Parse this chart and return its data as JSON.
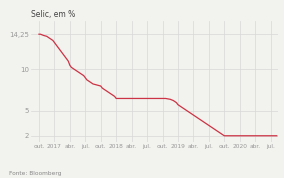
{
  "title": "Selic, em %",
  "source": "Fonte: Bloomberg",
  "yticks": [
    2,
    5,
    10,
    14.25
  ],
  "ytick_labels": [
    "2",
    "5",
    "10",
    "14,25"
  ],
  "ylim": [
    1.2,
    15.8
  ],
  "xlim": [
    -0.5,
    15.5
  ],
  "xtick_labels": [
    "out.",
    "2017",
    "abr.",
    "jul.",
    "out.",
    "2018",
    "abr.",
    "jul.",
    "out.",
    "2019",
    "abr.",
    "jul.",
    "out.",
    "2020",
    "abr.",
    "jul."
  ],
  "xtick_positions": [
    0,
    1,
    2,
    3,
    4,
    5,
    6,
    7,
    8,
    9,
    10,
    11,
    12,
    13,
    14,
    15
  ],
  "line_color": "#cc3344",
  "background_color": "#f2f2ee",
  "grid_color": "#d8d8d8",
  "data_x": [
    0.0,
    0.1,
    0.3,
    0.5,
    0.7,
    0.9,
    1.0,
    1.1,
    1.3,
    1.5,
    1.7,
    1.9,
    2.0,
    2.1,
    2.3,
    2.5,
    2.7,
    2.9,
    3.0,
    3.1,
    3.3,
    3.5,
    4.0,
    4.1,
    4.3,
    4.5,
    4.7,
    4.9,
    5.0,
    5.1,
    5.3,
    5.5,
    5.7,
    5.9,
    6.0,
    6.1,
    6.3,
    6.5,
    6.7,
    6.9,
    7.0,
    7.1,
    7.3,
    7.5,
    8.0,
    8.2,
    8.5,
    8.7,
    8.9,
    9.0,
    9.2,
    9.4,
    9.6,
    9.8,
    10.0,
    10.2,
    10.4,
    10.6,
    10.8,
    11.0,
    11.2,
    11.4,
    11.6,
    11.8,
    12.0,
    12.2,
    12.4,
    12.6,
    12.8,
    13.0,
    13.2,
    13.4,
    13.6,
    13.8,
    14.0,
    14.2,
    14.4,
    14.6,
    14.8,
    15.0,
    15.2,
    15.4
  ],
  "data_y": [
    14.25,
    14.25,
    14.1,
    14.0,
    13.75,
    13.5,
    13.25,
    13.0,
    12.5,
    12.0,
    11.5,
    11.0,
    10.5,
    10.25,
    10.0,
    9.75,
    9.5,
    9.25,
    9.0,
    8.75,
    8.5,
    8.25,
    8.0,
    7.75,
    7.5,
    7.25,
    7.0,
    6.75,
    6.5,
    6.5,
    6.5,
    6.5,
    6.5,
    6.5,
    6.5,
    6.5,
    6.5,
    6.5,
    6.5,
    6.5,
    6.5,
    6.5,
    6.5,
    6.5,
    6.5,
    6.5,
    6.4,
    6.25,
    6.0,
    5.75,
    5.5,
    5.25,
    5.0,
    4.75,
    4.5,
    4.25,
    4.0,
    3.75,
    3.5,
    3.25,
    3.0,
    2.75,
    2.5,
    2.25,
    2.0,
    2.0,
    2.0,
    2.0,
    2.0,
    2.0,
    2.0,
    2.0,
    2.0,
    2.0,
    2.0,
    2.0,
    2.0,
    2.0,
    2.0,
    2.0,
    2.0,
    2.0
  ]
}
